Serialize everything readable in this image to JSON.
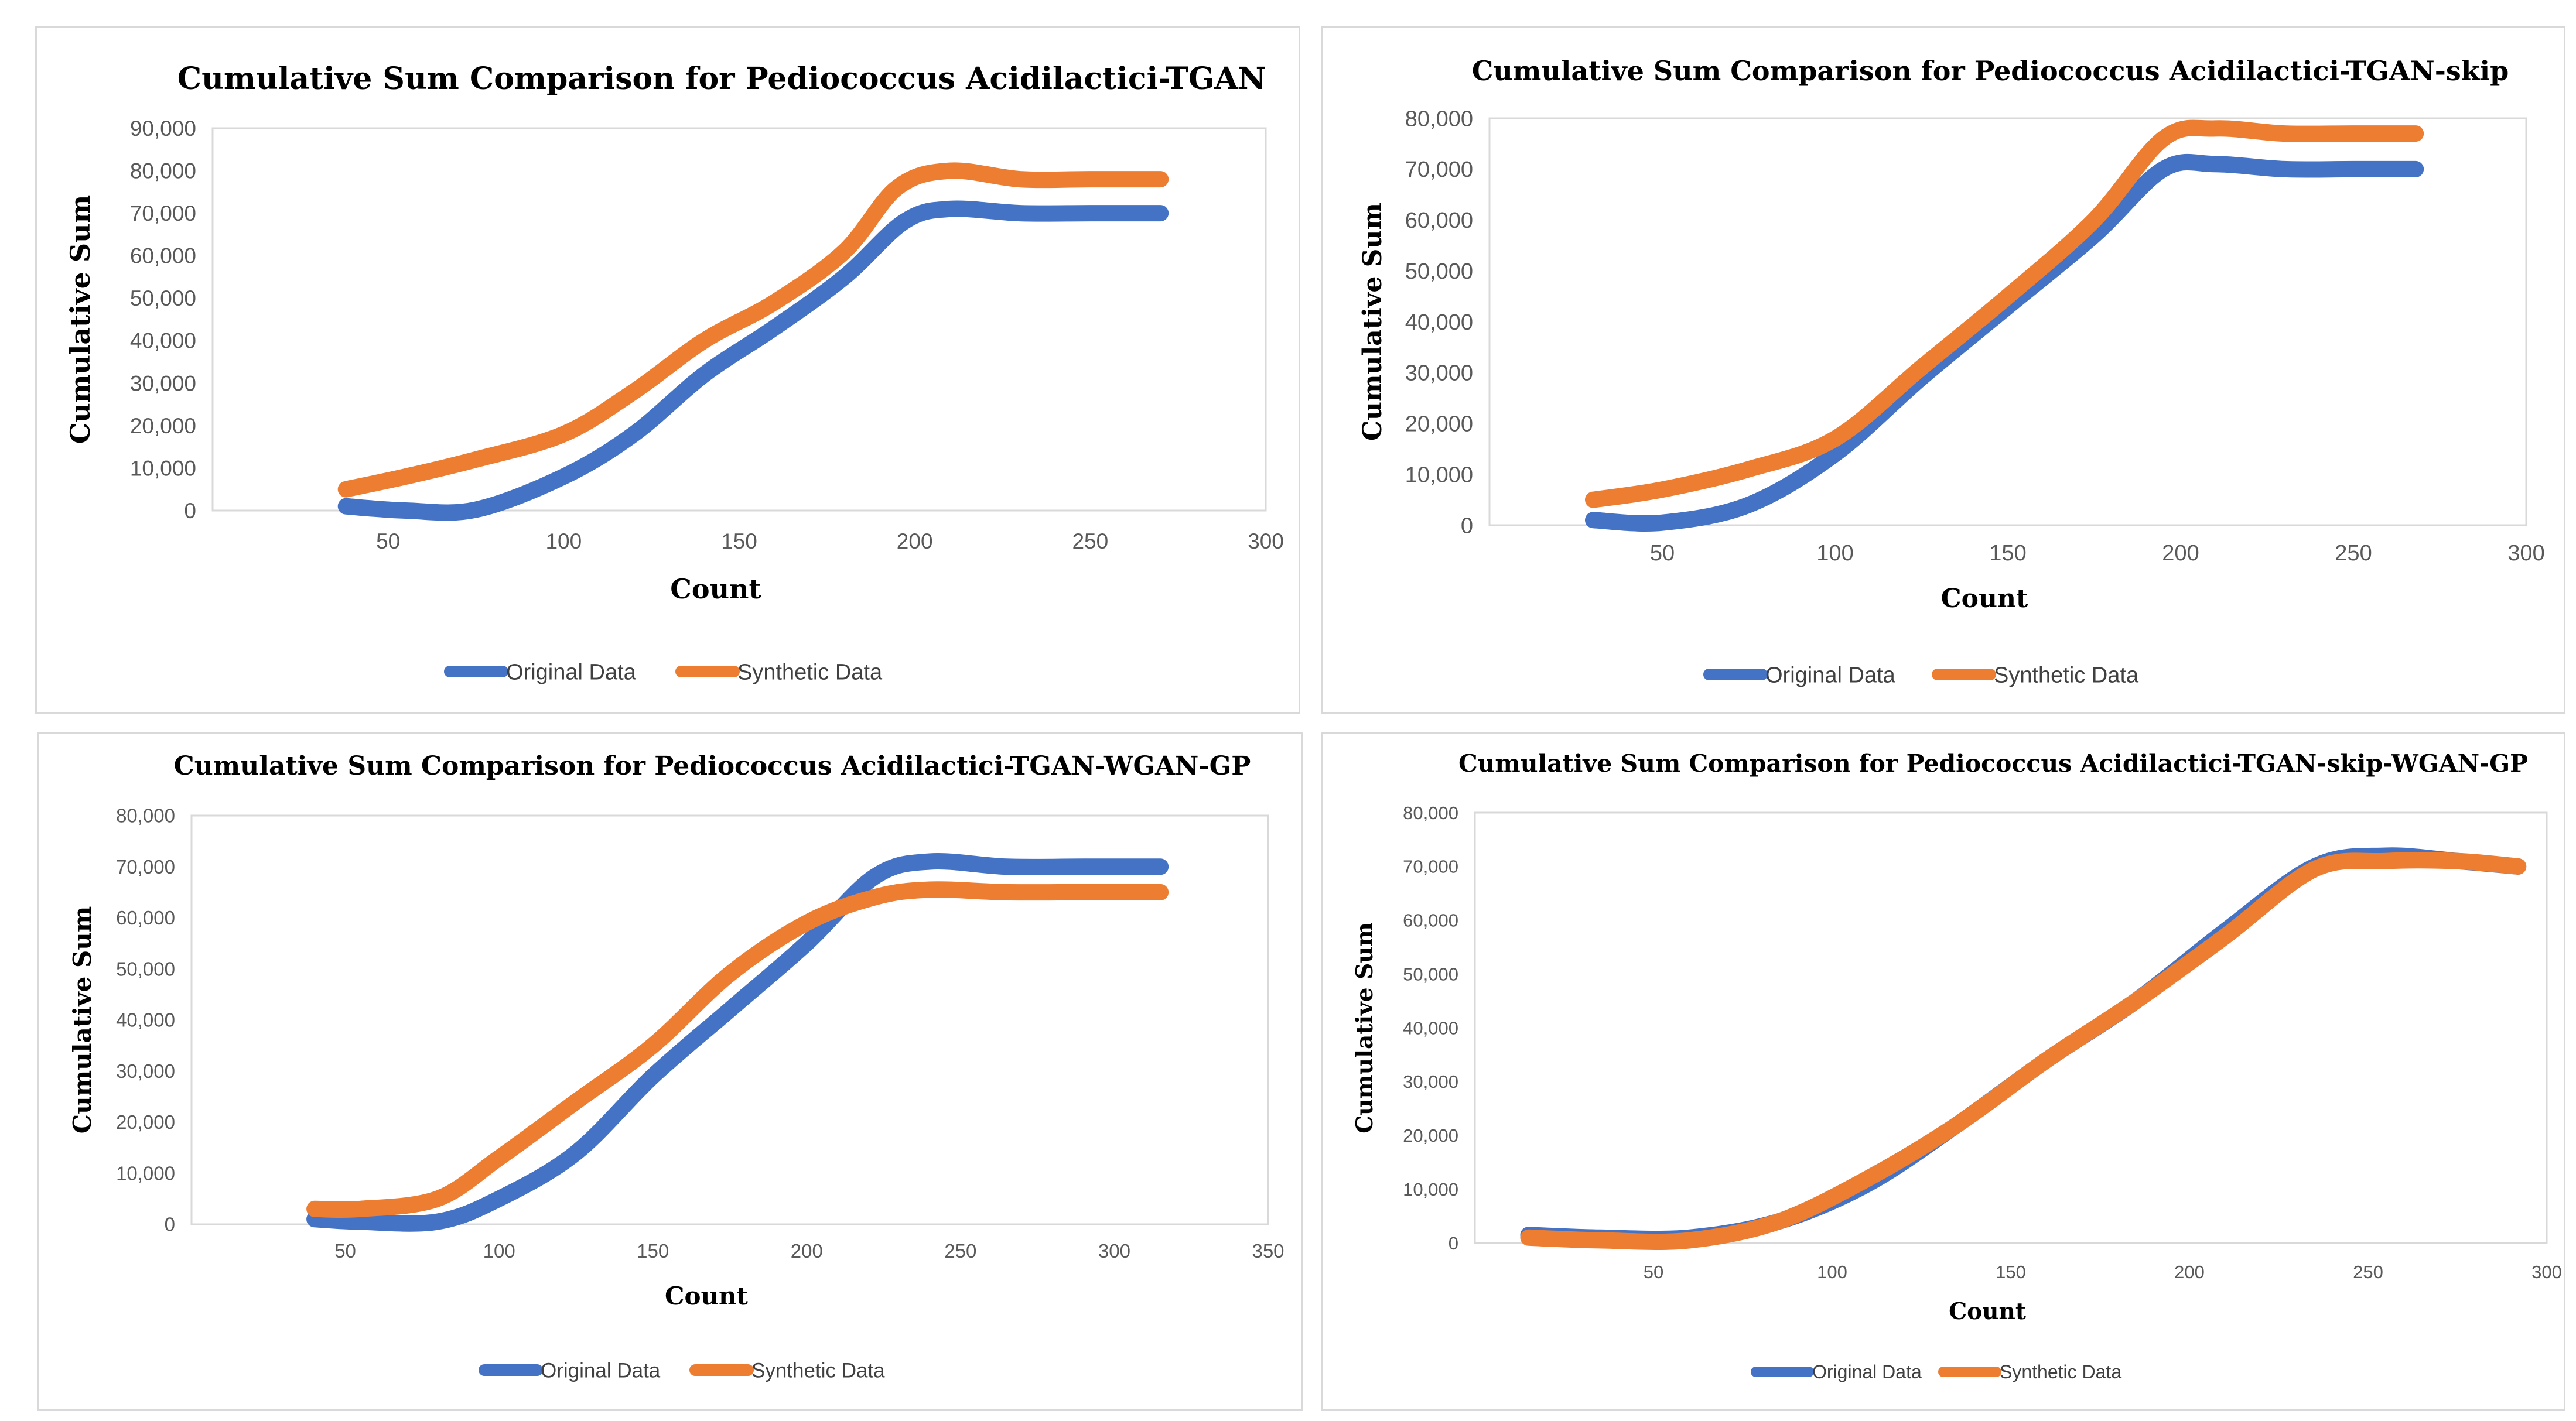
{
  "chart_data": [
    {
      "type": "line",
      "title": "Cumulative Sum Comparison for Pediococcus Acidilactici-TGAN",
      "xlabel": "Count",
      "ylabel": "Cumulative Sum",
      "xlim": [
        0,
        300
      ],
      "ylim": [
        0,
        90000
      ],
      "xticks": [
        50,
        100,
        150,
        200,
        250,
        300
      ],
      "yticks": [
        0,
        10000,
        20000,
        30000,
        40000,
        50000,
        60000,
        70000,
        80000,
        90000
      ],
      "ytick_labels": [
        "0",
        "10,000",
        "20,000",
        "30,000",
        "40,000",
        "50,000",
        "60,000",
        "70,000",
        "80,000",
        "90,000"
      ],
      "legend_position": "bottom",
      "series": [
        {
          "name": "Original Data",
          "color": "#4472C4",
          "x": [
            38,
            55,
            75,
            100,
            120,
            140,
            160,
            180,
            197,
            210,
            230,
            250,
            270
          ],
          "y": [
            1000,
            0,
            200,
            8000,
            18000,
            32000,
            43000,
            55000,
            68000,
            71000,
            70000,
            70000,
            70000
          ]
        },
        {
          "name": "Synthetic Data",
          "color": "#ED7D31",
          "x": [
            38,
            55,
            75,
            100,
            120,
            140,
            160,
            180,
            195,
            210,
            230,
            250,
            270
          ],
          "y": [
            5000,
            8000,
            12000,
            18000,
            28000,
            40000,
            49000,
            61000,
            76000,
            80000,
            78000,
            78000,
            78000
          ]
        }
      ]
    },
    {
      "type": "line",
      "title": "Cumulative Sum Comparison for Pediococcus Acidilactici-TGAN-skip",
      "xlabel": "Count",
      "ylabel": "Cumulative Sum",
      "xlim": [
        0,
        300
      ],
      "ylim": [
        0,
        80000
      ],
      "xticks": [
        50,
        100,
        150,
        200,
        250,
        300
      ],
      "yticks": [
        0,
        10000,
        20000,
        30000,
        40000,
        50000,
        60000,
        70000,
        80000
      ],
      "ytick_labels": [
        "0",
        "10,000",
        "20,000",
        "30,000",
        "40,000",
        "50,000",
        "60,000",
        "70,000",
        "80,000"
      ],
      "legend_position": "bottom",
      "series": [
        {
          "name": "Original Data",
          "color": "#4472C4",
          "x": [
            30,
            50,
            75,
            100,
            125,
            150,
            175,
            195,
            210,
            230,
            250,
            268
          ],
          "y": [
            1000,
            500,
            4000,
            14000,
            29000,
            43000,
            57000,
            70000,
            71000,
            70000,
            70000,
            70000
          ]
        },
        {
          "name": "Synthetic Data",
          "color": "#ED7D31",
          "x": [
            30,
            50,
            75,
            100,
            125,
            150,
            175,
            195,
            210,
            230,
            250,
            268
          ],
          "y": [
            5000,
            7000,
            11000,
            17000,
            31000,
            45000,
            60000,
            76000,
            78000,
            77000,
            77000,
            77000
          ]
        }
      ]
    },
    {
      "type": "line",
      "title": "Cumulative Sum Comparison for Pediococcus Acidilactici-TGAN-WGAN-GP",
      "xlabel": "Count",
      "ylabel": "Cumulative Sum",
      "xlim": [
        0,
        350
      ],
      "ylim": [
        0,
        80000
      ],
      "xticks": [
        50,
        100,
        150,
        200,
        250,
        300,
        350
      ],
      "yticks": [
        0,
        10000,
        20000,
        30000,
        40000,
        50000,
        60000,
        70000,
        80000
      ],
      "ytick_labels": [
        "0",
        "10,000",
        "20,000",
        "30,000",
        "40,000",
        "50,000",
        "60,000",
        "70,000",
        "80,000"
      ],
      "legend_position": "bottom",
      "series": [
        {
          "name": "Original Data",
          "color": "#4472C4",
          "x": [
            40,
            55,
            80,
            100,
            125,
            150,
            175,
            200,
            222,
            240,
            265,
            290,
            315
          ],
          "y": [
            1000,
            500,
            500,
            5000,
            14000,
            29000,
            42000,
            55000,
            68000,
            71000,
            70000,
            70000,
            70000
          ]
        },
        {
          "name": "Synthetic Data",
          "color": "#ED7D31",
          "x": [
            40,
            55,
            80,
            100,
            125,
            150,
            175,
            200,
            222,
            240,
            265,
            290,
            315
          ],
          "y": [
            3000,
            3000,
            5000,
            13000,
            24000,
            35000,
            49000,
            59000,
            64000,
            65500,
            65000,
            65000,
            65000
          ]
        }
      ]
    },
    {
      "type": "line",
      "title": "Cumulative Sum Comparison for Pediococcus Acidilactici-TGAN-skip-WGAN-GP",
      "xlabel": "Count",
      "ylabel": "Cumulative Sum",
      "xlim": [
        0,
        300
      ],
      "ylim": [
        0,
        80000
      ],
      "xticks": [
        50,
        100,
        150,
        200,
        250,
        300
      ],
      "yticks": [
        0,
        10000,
        20000,
        30000,
        40000,
        50000,
        60000,
        70000,
        80000
      ],
      "ytick_labels": [
        "0",
        "10,000",
        "20,000",
        "30,000",
        "40,000",
        "50,000",
        "60,000",
        "70,000",
        "80,000"
      ],
      "legend_position": "bottom",
      "series": [
        {
          "name": "Original Data",
          "color": "#4472C4",
          "x": [
            15,
            35,
            60,
            85,
            110,
            135,
            160,
            185,
            210,
            235,
            255,
            275,
            292
          ],
          "y": [
            1500,
            1000,
            1000,
            4000,
            11000,
            22000,
            34000,
            45000,
            58000,
            70000,
            72000,
            71000,
            70000
          ]
        },
        {
          "name": "Synthetic Data",
          "color": "#ED7D31",
          "x": [
            15,
            35,
            60,
            85,
            110,
            135,
            160,
            185,
            210,
            235,
            255,
            275,
            292
          ],
          "y": [
            1000,
            500,
            500,
            4000,
            12000,
            22000,
            34000,
            45000,
            57000,
            69500,
            71000,
            71000,
            70000
          ]
        }
      ]
    }
  ]
}
